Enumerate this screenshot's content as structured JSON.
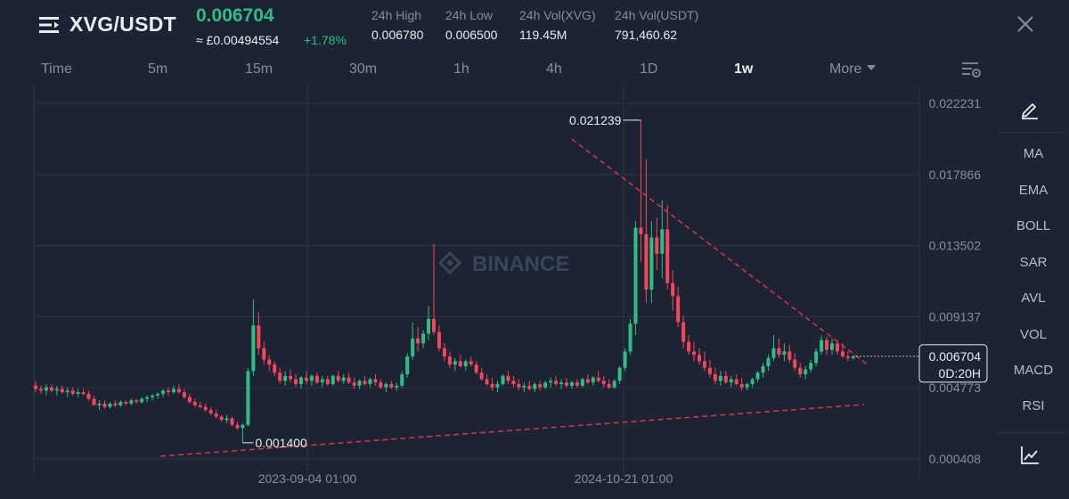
{
  "header": {
    "pair": "XVG/USDT",
    "price": "0.006704",
    "fiat_price": "≈ £0.00494554",
    "change": "+1.78%",
    "stats": [
      {
        "label": "24h High",
        "value": "0.006780"
      },
      {
        "label": "24h Low",
        "value": "0.006500"
      },
      {
        "label": "24h Vol(XVG)",
        "value": "119.45M"
      },
      {
        "label": "24h Vol(USDT)",
        "value": "791,460.62"
      }
    ]
  },
  "timeframes": [
    "Time",
    "5m",
    "15m",
    "30m",
    "1h",
    "4h",
    "1D",
    "1w",
    "More"
  ],
  "active_timeframe": "1w",
  "toolbar": {
    "indicators": [
      "MA",
      "EMA",
      "BOLL",
      "SAR",
      "AVL",
      "VOL",
      "MACD",
      "RSI"
    ]
  },
  "colors": {
    "background": "#1c2433",
    "up": "#2ebd85",
    "down": "#f6465d",
    "trendline": "#e0333f",
    "text_primary": "#eaecef",
    "text_secondary": "#848e9c"
  },
  "icons": [
    "binance-logo-icon",
    "close-icon",
    "settings-icon",
    "pencil-icon",
    "line-chart-icon",
    "more-caret-icon"
  ],
  "chart_data": {
    "type": "candlestick",
    "watermark": "BINANCE",
    "y_ticks": [
      "0.022231",
      "0.017866",
      "0.013502",
      "0.009137",
      "0.004773",
      "0.000408"
    ],
    "ylim": [
      0.000408,
      0.024413
    ],
    "x_ticks": [
      "2023-09-04 01:00",
      "2024-10-21 01:00"
    ],
    "annotations": {
      "high": "0.021239",
      "low": "0.001400"
    },
    "current_price": "0.006704",
    "countdown": "0D:20H",
    "candles": [
      [
        0.0049,
        0.0052,
        0.0045,
        0.0047
      ],
      [
        0.0047,
        0.0049,
        0.0044,
        0.0046
      ],
      [
        0.0046,
        0.005,
        0.0043,
        0.0048
      ],
      [
        0.0048,
        0.005,
        0.0045,
        0.0046
      ],
      [
        0.0046,
        0.0049,
        0.0043,
        0.0047
      ],
      [
        0.0047,
        0.0049,
        0.0044,
        0.0045
      ],
      [
        0.0045,
        0.0048,
        0.0042,
        0.0046
      ],
      [
        0.0046,
        0.0048,
        0.0043,
        0.0044
      ],
      [
        0.0044,
        0.0047,
        0.0042,
        0.0045
      ],
      [
        0.0045,
        0.0047,
        0.0043,
        0.0044
      ],
      [
        0.0044,
        0.0046,
        0.004,
        0.0041
      ],
      [
        0.0041,
        0.0043,
        0.0037,
        0.0037
      ],
      [
        0.0037,
        0.004,
        0.0034,
        0.0038
      ],
      [
        0.0038,
        0.004,
        0.0035,
        0.0036
      ],
      [
        0.0036,
        0.0039,
        0.0035,
        0.0038
      ],
      [
        0.0038,
        0.004,
        0.0036,
        0.0037
      ],
      [
        0.0037,
        0.004,
        0.0036,
        0.0039
      ],
      [
        0.0039,
        0.004,
        0.0037,
        0.0038
      ],
      [
        0.0038,
        0.0041,
        0.0037,
        0.004
      ],
      [
        0.004,
        0.0041,
        0.0038,
        0.0039
      ],
      [
        0.0039,
        0.0042,
        0.0038,
        0.0041
      ],
      [
        0.0041,
        0.0043,
        0.0039,
        0.0042
      ],
      [
        0.0042,
        0.0044,
        0.004,
        0.0043
      ],
      [
        0.0043,
        0.0045,
        0.0041,
        0.0044
      ],
      [
        0.0044,
        0.0047,
        0.0042,
        0.0046
      ],
      [
        0.0046,
        0.0048,
        0.0043,
        0.0045
      ],
      [
        0.0045,
        0.0049,
        0.0044,
        0.0047
      ],
      [
        0.0047,
        0.005,
        0.0044,
        0.0045
      ],
      [
        0.0045,
        0.0047,
        0.0041,
        0.0042
      ],
      [
        0.0042,
        0.0044,
        0.0038,
        0.0039
      ],
      [
        0.0039,
        0.0041,
        0.0036,
        0.0037
      ],
      [
        0.0037,
        0.0039,
        0.0035,
        0.0036
      ],
      [
        0.0036,
        0.0038,
        0.0033,
        0.0034
      ],
      [
        0.0034,
        0.0036,
        0.0031,
        0.0032
      ],
      [
        0.0032,
        0.0034,
        0.0029,
        0.003
      ],
      [
        0.003,
        0.0031,
        0.0027,
        0.0028
      ],
      [
        0.0028,
        0.0031,
        0.0026,
        0.0029
      ],
      [
        0.0029,
        0.003,
        0.0024,
        0.0025
      ],
      [
        0.0025,
        0.0027,
        0.0022,
        0.0023
      ],
      [
        0.0023,
        0.0026,
        0.0014,
        0.0025
      ],
      [
        0.0025,
        0.006,
        0.0024,
        0.0058
      ],
      [
        0.0058,
        0.0102,
        0.0055,
        0.0086
      ],
      [
        0.0086,
        0.0094,
        0.0068,
        0.0072
      ],
      [
        0.0072,
        0.0076,
        0.0062,
        0.0065
      ],
      [
        0.0065,
        0.0068,
        0.0058,
        0.0062
      ],
      [
        0.0062,
        0.0064,
        0.0055,
        0.0057
      ],
      [
        0.0057,
        0.006,
        0.005,
        0.0052
      ],
      [
        0.0052,
        0.0058,
        0.0049,
        0.0055
      ],
      [
        0.0055,
        0.0059,
        0.0051,
        0.0053
      ],
      [
        0.0053,
        0.0056,
        0.0048,
        0.005
      ],
      [
        0.005,
        0.0055,
        0.0047,
        0.0054
      ],
      [
        0.0054,
        0.0058,
        0.005,
        0.0052
      ],
      [
        0.0052,
        0.0056,
        0.0049,
        0.0055
      ],
      [
        0.0055,
        0.0057,
        0.005,
        0.0051
      ],
      [
        0.0051,
        0.0055,
        0.0048,
        0.0053
      ],
      [
        0.0053,
        0.0055,
        0.0049,
        0.005
      ],
      [
        0.005,
        0.0056,
        0.0049,
        0.0055
      ],
      [
        0.0055,
        0.0058,
        0.0051,
        0.0052
      ],
      [
        0.0052,
        0.0056,
        0.005,
        0.0054
      ],
      [
        0.0054,
        0.0057,
        0.005,
        0.0051
      ],
      [
        0.0051,
        0.0054,
        0.0047,
        0.0049
      ],
      [
        0.0049,
        0.0053,
        0.0047,
        0.0052
      ],
      [
        0.0052,
        0.0055,
        0.0049,
        0.005
      ],
      [
        0.005,
        0.0054,
        0.0048,
        0.0053
      ],
      [
        0.0053,
        0.0056,
        0.0049,
        0.0051
      ],
      [
        0.0051,
        0.0053,
        0.0047,
        0.0048
      ],
      [
        0.0048,
        0.0051,
        0.0045,
        0.005
      ],
      [
        0.005,
        0.0052,
        0.0047,
        0.0048
      ],
      [
        0.0048,
        0.0051,
        0.0046,
        0.0049
      ],
      [
        0.0049,
        0.0058,
        0.0048,
        0.0056
      ],
      [
        0.0056,
        0.0069,
        0.0054,
        0.0067
      ],
      [
        0.0067,
        0.0088,
        0.0065,
        0.0078
      ],
      [
        0.0078,
        0.0085,
        0.007,
        0.0075
      ],
      [
        0.0075,
        0.0083,
        0.0072,
        0.0081
      ],
      [
        0.0081,
        0.0098,
        0.0077,
        0.009
      ],
      [
        0.009,
        0.0136,
        0.008,
        0.0082
      ],
      [
        0.0082,
        0.0086,
        0.007,
        0.0072
      ],
      [
        0.0072,
        0.0075,
        0.0064,
        0.0067
      ],
      [
        0.0067,
        0.007,
        0.006,
        0.0062
      ],
      [
        0.0062,
        0.0066,
        0.0058,
        0.0064
      ],
      [
        0.0064,
        0.0068,
        0.006,
        0.0061
      ],
      [
        0.0061,
        0.0065,
        0.0058,
        0.0064
      ],
      [
        0.0064,
        0.0067,
        0.0061,
        0.0062
      ],
      [
        0.0062,
        0.0064,
        0.0056,
        0.0057
      ],
      [
        0.0057,
        0.006,
        0.0052,
        0.0053
      ],
      [
        0.0053,
        0.0056,
        0.0049,
        0.005
      ],
      [
        0.005,
        0.0054,
        0.0046,
        0.0048
      ],
      [
        0.0048,
        0.0052,
        0.0045,
        0.005
      ],
      [
        0.005,
        0.0056,
        0.0049,
        0.0055
      ],
      [
        0.0055,
        0.0058,
        0.005,
        0.0052
      ],
      [
        0.0052,
        0.0055,
        0.0048,
        0.005
      ],
      [
        0.005,
        0.0053,
        0.0046,
        0.0048
      ],
      [
        0.0048,
        0.0051,
        0.0045,
        0.0049
      ],
      [
        0.0049,
        0.0052,
        0.0046,
        0.0047
      ],
      [
        0.0047,
        0.0051,
        0.0045,
        0.005
      ],
      [
        0.005,
        0.0052,
        0.0046,
        0.0048
      ],
      [
        0.0048,
        0.0052,
        0.0047,
        0.0051
      ],
      [
        0.0051,
        0.0054,
        0.0048,
        0.0052
      ],
      [
        0.0052,
        0.0055,
        0.0049,
        0.005
      ],
      [
        0.005,
        0.0053,
        0.0047,
        0.0051
      ],
      [
        0.0051,
        0.0054,
        0.0048,
        0.0049
      ],
      [
        0.0049,
        0.0052,
        0.0047,
        0.0051
      ],
      [
        0.0051,
        0.0053,
        0.0048,
        0.0049
      ],
      [
        0.0049,
        0.0054,
        0.0048,
        0.0053
      ],
      [
        0.0053,
        0.0056,
        0.005,
        0.0051
      ],
      [
        0.0051,
        0.0055,
        0.0049,
        0.0054
      ],
      [
        0.0054,
        0.0058,
        0.0051,
        0.0052
      ],
      [
        0.0052,
        0.0055,
        0.0048,
        0.005
      ],
      [
        0.005,
        0.0053,
        0.0047,
        0.0048
      ],
      [
        0.0048,
        0.0053,
        0.0047,
        0.0052
      ],
      [
        0.0052,
        0.0061,
        0.005,
        0.006
      ],
      [
        0.006,
        0.0072,
        0.0058,
        0.007
      ],
      [
        0.007,
        0.009,
        0.0068,
        0.0087
      ],
      [
        0.0087,
        0.015,
        0.008,
        0.0146
      ],
      [
        0.0146,
        0.0212,
        0.0125,
        0.0142
      ],
      [
        0.0142,
        0.0188,
        0.01,
        0.0108
      ],
      [
        0.0108,
        0.015,
        0.01,
        0.014
      ],
      [
        0.014,
        0.0152,
        0.012,
        0.013
      ],
      [
        0.013,
        0.0163,
        0.0115,
        0.0145
      ],
      [
        0.0145,
        0.016,
        0.0108,
        0.0112
      ],
      [
        0.0112,
        0.012,
        0.0095,
        0.0104
      ],
      [
        0.0104,
        0.011,
        0.0085,
        0.0088
      ],
      [
        0.0088,
        0.0092,
        0.0072,
        0.0076
      ],
      [
        0.0076,
        0.008,
        0.0068,
        0.007
      ],
      [
        0.007,
        0.0076,
        0.0064,
        0.0068
      ],
      [
        0.0068,
        0.0072,
        0.0062,
        0.0064
      ],
      [
        0.0064,
        0.007,
        0.0058,
        0.006
      ],
      [
        0.006,
        0.0065,
        0.0054,
        0.0056
      ],
      [
        0.0056,
        0.006,
        0.005,
        0.0052
      ],
      [
        0.0052,
        0.0058,
        0.0049,
        0.0055
      ],
      [
        0.0055,
        0.0058,
        0.005,
        0.0051
      ],
      [
        0.0051,
        0.0055,
        0.0048,
        0.0053
      ],
      [
        0.0053,
        0.0056,
        0.0049,
        0.005
      ],
      [
        0.005,
        0.0054,
        0.0046,
        0.0048
      ],
      [
        0.0048,
        0.0051,
        0.0046,
        0.005
      ],
      [
        0.005,
        0.0054,
        0.0048,
        0.0053
      ],
      [
        0.0053,
        0.0058,
        0.0051,
        0.0057
      ],
      [
        0.0057,
        0.0063,
        0.0054,
        0.0061
      ],
      [
        0.0061,
        0.0068,
        0.0058,
        0.0066
      ],
      [
        0.0066,
        0.008,
        0.0064,
        0.0072
      ],
      [
        0.0072,
        0.0078,
        0.0066,
        0.0068
      ],
      [
        0.0068,
        0.0075,
        0.0064,
        0.007
      ],
      [
        0.007,
        0.0074,
        0.0063,
        0.0065
      ],
      [
        0.0065,
        0.0069,
        0.0058,
        0.006
      ],
      [
        0.006,
        0.0063,
        0.0054,
        0.0056
      ],
      [
        0.0056,
        0.0061,
        0.0053,
        0.0059
      ],
      [
        0.0059,
        0.0065,
        0.0057,
        0.0063
      ],
      [
        0.0063,
        0.0072,
        0.0061,
        0.007
      ],
      [
        0.007,
        0.008,
        0.0068,
        0.0077
      ],
      [
        0.0077,
        0.0079,
        0.0068,
        0.0071
      ],
      [
        0.0071,
        0.0078,
        0.0068,
        0.0075
      ],
      [
        0.0075,
        0.0077,
        0.0068,
        0.007
      ],
      [
        0.007,
        0.0075,
        0.0066,
        0.0067
      ],
      [
        0.0067,
        0.007,
        0.0064,
        0.0066
      ],
      [
        0.0066,
        0.0068,
        0.0065,
        0.0067
      ]
    ]
  }
}
